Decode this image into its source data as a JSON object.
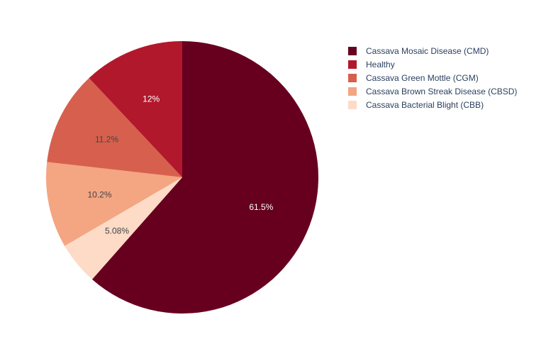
{
  "chart_data": {
    "type": "pie",
    "title": "",
    "direction": "clockwise",
    "start_angle": "top",
    "legend_position": "top-right",
    "slices": [
      {
        "label": "Cassava Mosaic Disease (CMD)",
        "value": 61.5,
        "text": "61.5%",
        "color": "#67001f",
        "text_color": "#ffffff"
      },
      {
        "label": "Cassava Bacterial Blight (CBB)",
        "value": 5.08,
        "text": "5.08%",
        "color": "#fddbc7",
        "text_color": "#444444"
      },
      {
        "label": "Cassava Brown Streak Disease (CBSD)",
        "value": 10.2,
        "text": "10.2%",
        "color": "#f4a582",
        "text_color": "#444444"
      },
      {
        "label": "Cassava Green Mottle (CGM)",
        "value": 11.2,
        "text": "11.2%",
        "color": "#d6604d",
        "text_color": "#444444"
      },
      {
        "label": "Healthy",
        "value": 12,
        "text": "12%",
        "color": "#b2182b",
        "text_color": "#ffffff"
      }
    ],
    "legend": [
      {
        "label": "Cassava Mosaic Disease (CMD)",
        "color": "#67001f"
      },
      {
        "label": "Healthy",
        "color": "#b2182b"
      },
      {
        "label": "Cassava Green Mottle (CGM)",
        "color": "#d6604d"
      },
      {
        "label": "Cassava Brown Streak Disease (CBSD)",
        "color": "#f4a582"
      },
      {
        "label": "Cassava Bacterial Blight (CBB)",
        "color": "#fddbc7"
      }
    ]
  }
}
